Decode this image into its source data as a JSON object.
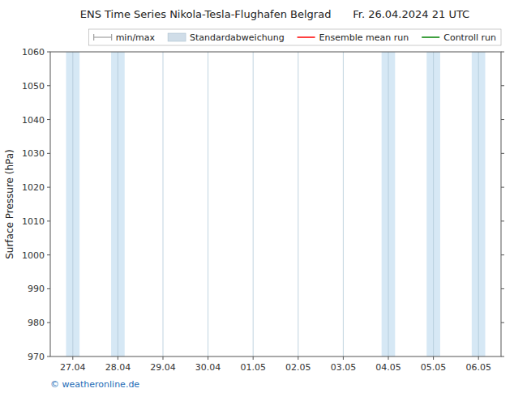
{
  "chart_data": {
    "type": "line",
    "title": "ENS Time Series Nikola-Tesla-Flughafen Belgrad",
    "subtitle": "Fr. 26.04.2024 21 UTC",
    "y_label": "Surface Pressure (hPa)",
    "annotations": [
      "© weatheronline.de"
    ],
    "categories": [
      "27.04",
      "28.04",
      "29.04",
      "30.04",
      "01.05",
      "02.05",
      "03.05",
      "04.05",
      "05.05",
      "06.05"
    ],
    "shaded": [
      "27.04",
      "28.04",
      "04.05",
      "05.05",
      "06.05"
    ],
    "series": [
      {
        "name": "min/max",
        "type": "errorbar",
        "color": "#a0a0a0",
        "values": [
          null,
          null,
          null,
          null,
          null,
          null,
          null,
          null,
          null,
          null
        ]
      },
      {
        "name": "Standardabweichung",
        "type": "area",
        "color": "#d0dde8",
        "values": [
          null,
          null,
          null,
          null,
          null,
          null,
          null,
          null,
          null,
          null
        ]
      },
      {
        "name": "Ensemble mean run",
        "type": "line",
        "color": "#ff0000",
        "values": [
          null,
          null,
          null,
          null,
          null,
          null,
          null,
          null,
          null,
          null
        ]
      },
      {
        "name": "Controll run",
        "type": "line",
        "color": "#008000",
        "values": [
          null,
          null,
          null,
          null,
          null,
          null,
          null,
          null,
          null,
          null
        ]
      }
    ],
    "ylim": [
      970,
      1060
    ],
    "yticks": [
      970,
      980,
      990,
      1000,
      1010,
      1020,
      1030,
      1040,
      1050,
      1060
    ],
    "grid": "x",
    "legend": "upper right"
  }
}
